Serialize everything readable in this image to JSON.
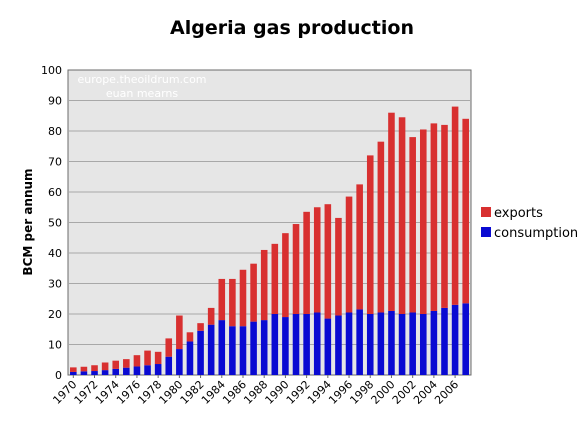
{
  "chart_data": {
    "type": "bar",
    "stacked": true,
    "title": "Algeria gas production",
    "ylabel": "BCM per annum",
    "xlabel": "",
    "ylim": [
      0,
      100
    ],
    "yticks": [
      0,
      10,
      20,
      30,
      40,
      50,
      60,
      70,
      80,
      90,
      100
    ],
    "x_tick_labels": [
      "1970",
      "1972",
      "1974",
      "1976",
      "1978",
      "1980",
      "1982",
      "1984",
      "1986",
      "1988",
      "1990",
      "1992",
      "1994",
      "1996",
      "1998",
      "2000",
      "2002",
      "2004",
      "2006"
    ],
    "categories": [
      "1970",
      "1971",
      "1972",
      "1973",
      "1974",
      "1975",
      "1976",
      "1977",
      "1978",
      "1979",
      "1980",
      "1981",
      "1982",
      "1983",
      "1984",
      "1985",
      "1986",
      "1987",
      "1988",
      "1989",
      "1990",
      "1991",
      "1992",
      "1993",
      "1994",
      "1995",
      "1996",
      "1997",
      "1998",
      "1999",
      "2000",
      "2001",
      "2002",
      "2003",
      "2004",
      "2005",
      "2006",
      "2007"
    ],
    "series": [
      {
        "name": "consumption",
        "color": "#0a0ad2",
        "values": [
          1.0,
          1.2,
          1.3,
          1.6,
          2.0,
          2.4,
          2.8,
          3.2,
          3.6,
          6.0,
          8.5,
          11.0,
          14.5,
          16.5,
          18.0,
          16.0,
          16.0,
          17.5,
          18.0,
          20.0,
          19.0,
          20.0,
          20.0,
          20.5,
          18.5,
          19.5,
          20.5,
          21.5,
          20.0,
          20.5,
          21.0,
          20.0,
          20.5,
          20.0,
          21.0,
          22.0,
          23.0,
          23.5
        ]
      },
      {
        "name": "exports",
        "color": "#d83030",
        "values": [
          1.5,
          1.5,
          1.9,
          2.5,
          2.7,
          2.8,
          3.7,
          4.8,
          4.0,
          6.0,
          11.0,
          3.0,
          2.5,
          5.5,
          13.5,
          15.5,
          18.5,
          19.0,
          23.0,
          23.0,
          27.5,
          29.5,
          33.5,
          34.5,
          37.5,
          32.0,
          38.0,
          41.0,
          52.0,
          56.0,
          65.0,
          64.5,
          57.5,
          60.5,
          61.5,
          60.0,
          65.0,
          60.5
        ]
      }
    ],
    "legend_position": "right",
    "plot_background": "#e6e6e6",
    "grid": "horizontal",
    "watermark": [
      "europe.theoildrum.com",
      "euan mearns"
    ]
  }
}
